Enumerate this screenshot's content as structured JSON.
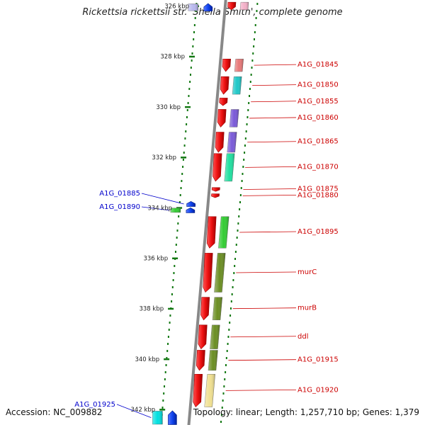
{
  "title": "Rickettsia rickettsii str. 'Sheila Smith', complete genome",
  "accession": "Accession: NC_009882",
  "summary": "Topology: linear; Length: 1,257,710 bp; Genes: 1,379",
  "axis": {
    "unit": "kbp",
    "ticks": [
      {
        "kbp": 326,
        "label": "326 kbp"
      },
      {
        "kbp": 328,
        "label": "328 kbp"
      },
      {
        "kbp": 330,
        "label": "330 kbp"
      },
      {
        "kbp": 332,
        "label": "332 kbp"
      },
      {
        "kbp": 334,
        "label": "334 kbp"
      },
      {
        "kbp": 336,
        "label": "336 kbp"
      },
      {
        "kbp": 338,
        "label": "338 kbp"
      },
      {
        "kbp": 340,
        "label": "340 kbp"
      },
      {
        "kbp": 342,
        "label": "342 kbp"
      }
    ]
  },
  "colors": {
    "forward_gene": "#ee1111",
    "reverse_gene": "#1144ee",
    "forward_label": "#cc0000",
    "reverse_label": "#0000cc",
    "backbone": "#888888",
    "ticks": "#117711"
  },
  "genes": [
    {
      "label": "",
      "start": 325.85,
      "end": 326.15,
      "strand": "+",
      "cog": "#f4b0c8"
    },
    {
      "label": "",
      "start": 325.9,
      "end": 326.2,
      "strand": "-",
      "cog": "#b8b8ee"
    },
    {
      "label": "A1G_01845",
      "start": 328.1,
      "end": 328.6,
      "strand": "+",
      "cog": "#e87878"
    },
    {
      "label": "A1G_01850",
      "start": 328.8,
      "end": 329.5,
      "strand": "+",
      "cog": "#20c8c8"
    },
    {
      "label": "A1G_01855",
      "start": 329.65,
      "end": 329.95,
      "strand": "+",
      "cog": ""
    },
    {
      "label": "A1G_01860",
      "start": 330.1,
      "end": 330.8,
      "strand": "+",
      "cog": "#7a5ad8"
    },
    {
      "label": "A1G_01865",
      "start": 331.0,
      "end": 331.8,
      "strand": "+",
      "cog": "#7a5ad8"
    },
    {
      "label": "A1G_01870",
      "start": 331.85,
      "end": 332.95,
      "strand": "+",
      "cog": "#20e0a0"
    },
    {
      "label": "A1G_01875",
      "start": 333.2,
      "end": 333.35,
      "strand": "+",
      "cog": ""
    },
    {
      "label": "A1G_01880",
      "start": 333.45,
      "end": 333.6,
      "strand": "+",
      "cog": ""
    },
    {
      "label": "A1G_01885",
      "start": 333.75,
      "end": 333.95,
      "strand": "-",
      "cog": ""
    },
    {
      "label": "A1G_01890",
      "start": 334.0,
      "end": 334.2,
      "strand": "-",
      "cog": "#33cc33"
    },
    {
      "label": "A1G_01895",
      "start": 334.35,
      "end": 335.6,
      "strand": "+",
      "cog": "#33cc33"
    },
    {
      "label": "murC",
      "start": 335.8,
      "end": 337.35,
      "strand": "+",
      "cog": "#6b8e23"
    },
    {
      "label": "murB",
      "start": 337.55,
      "end": 338.45,
      "strand": "+",
      "cog": "#6b8e23"
    },
    {
      "label": "ddl",
      "start": 338.65,
      "end": 339.6,
      "strand": "+",
      "cog": "#6b8e23"
    },
    {
      "label": "A1G_01915",
      "start": 339.65,
      "end": 340.45,
      "strand": "+",
      "cog": "#6b8e23"
    },
    {
      "label": "A1G_01920",
      "start": 340.6,
      "end": 341.9,
      "strand": "+",
      "cog": "#f0e090"
    },
    {
      "label": "A1G_01925",
      "start": 342.05,
      "end": 342.6,
      "strand": "-",
      "cog": "#00e0e0"
    }
  ]
}
